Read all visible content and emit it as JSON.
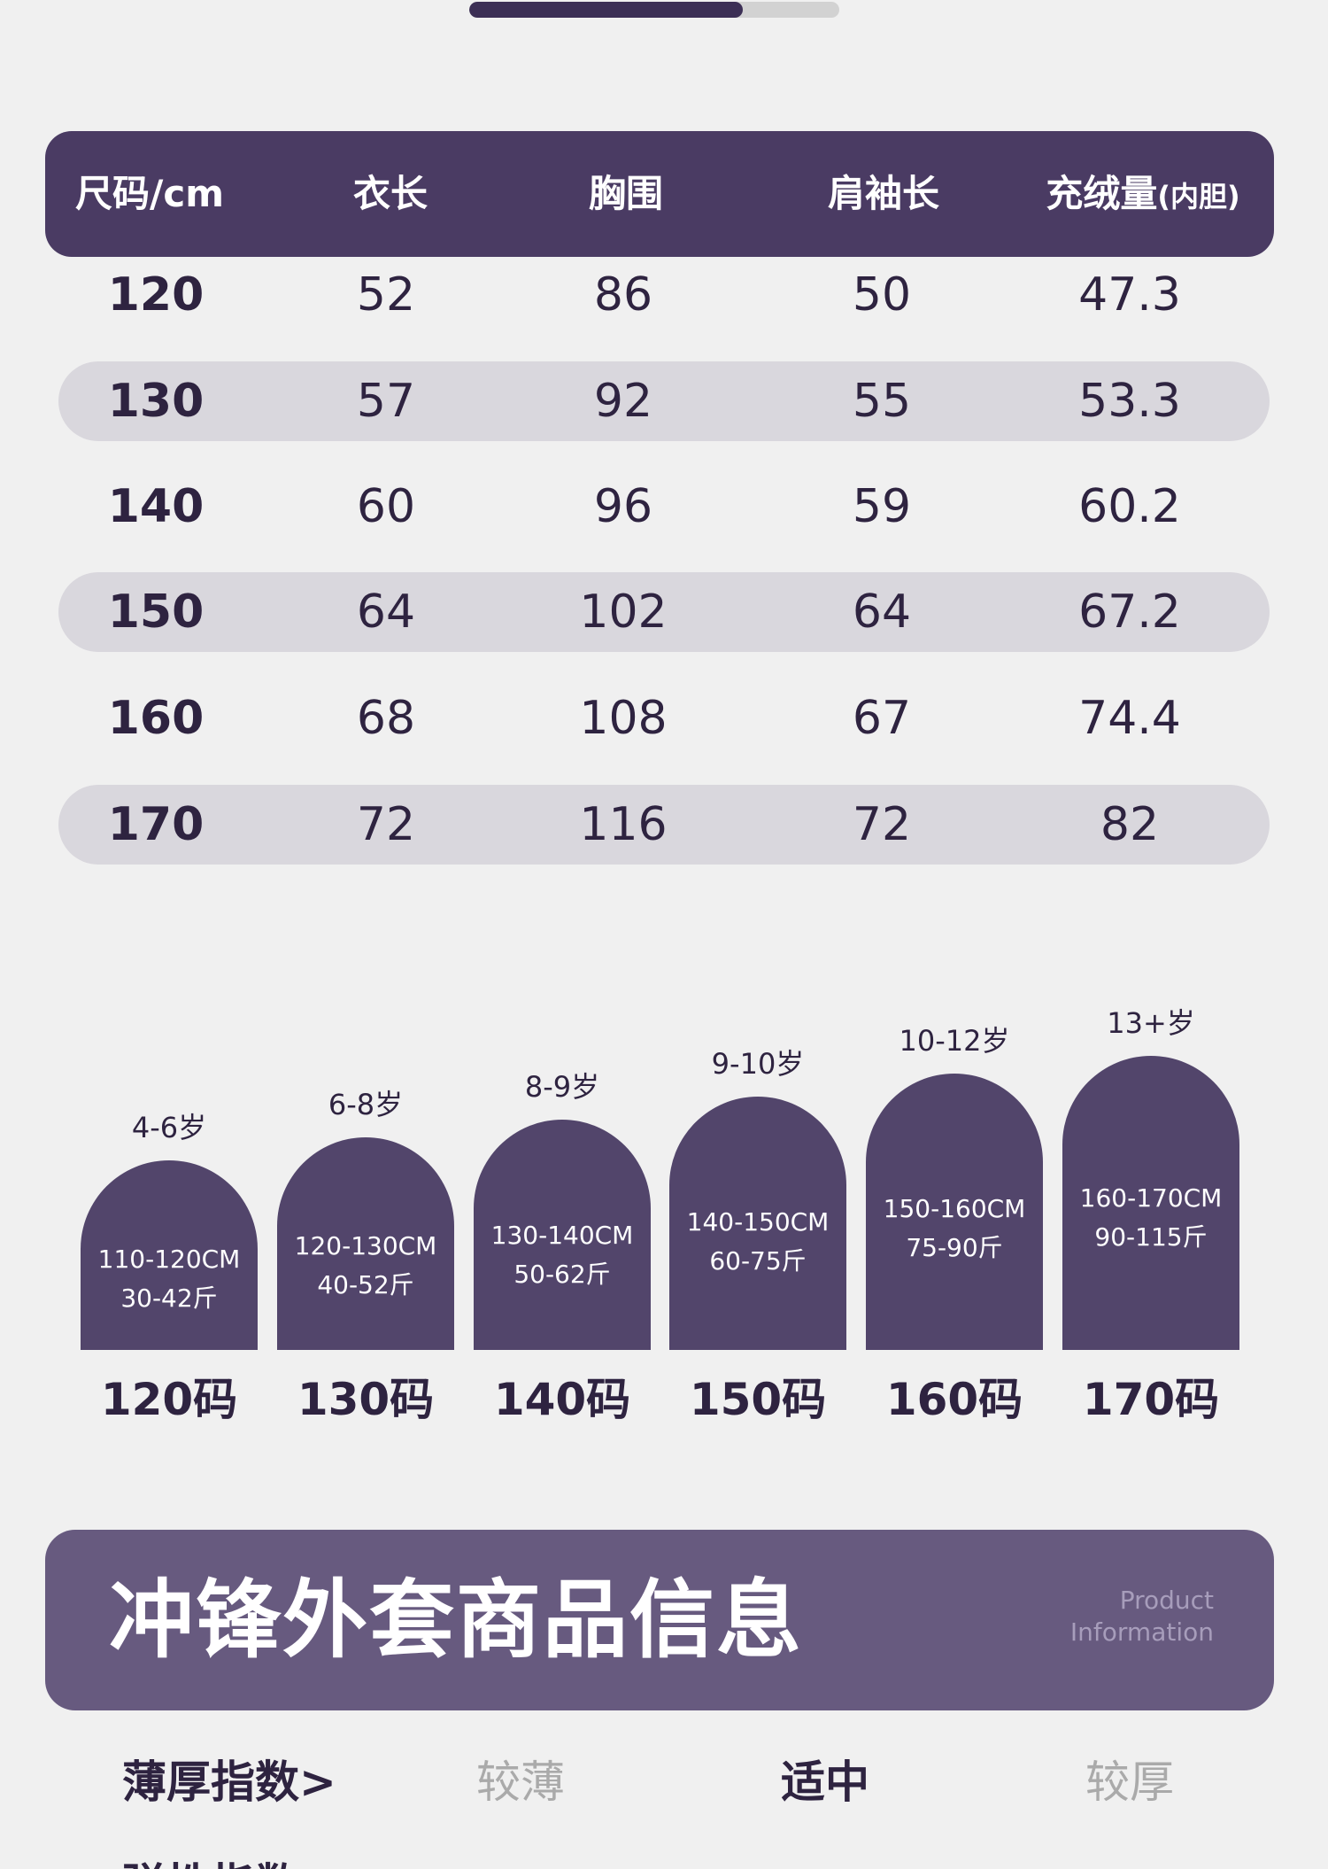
{
  "progress": {
    "fraction": 0.74
  },
  "size_table": {
    "headers": [
      "尺码/cm",
      "衣长",
      "胸围",
      "肩袖长",
      "充绒量",
      "(内胆)"
    ],
    "rows": [
      [
        "120",
        "52",
        "86",
        "50",
        "47.3"
      ],
      [
        "130",
        "57",
        "92",
        "55",
        "53.3"
      ],
      [
        "140",
        "60",
        "96",
        "59",
        "60.2"
      ],
      [
        "150",
        "64",
        "102",
        "64",
        "67.2"
      ],
      [
        "160",
        "68",
        "108",
        "67",
        "74.4"
      ],
      [
        "170",
        "72",
        "116",
        "72",
        "82"
      ]
    ]
  },
  "size_guide": [
    {
      "age": "4-6岁",
      "height": "110-120CM",
      "weight": "30-42斤",
      "size": "120码"
    },
    {
      "age": "6-8岁",
      "height": "120-130CM",
      "weight": "40-52斤",
      "size": "130码"
    },
    {
      "age": "8-9岁",
      "height": "130-140CM",
      "weight": "50-62斤",
      "size": "140码"
    },
    {
      "age": "9-10岁",
      "height": "140-150CM",
      "weight": "60-75斤",
      "size": "150码"
    },
    {
      "age": "10-12岁",
      "height": "150-160CM",
      "weight": "75-90斤",
      "size": "160码"
    },
    {
      "age": "13+岁",
      "height": "160-170CM",
      "weight": "90-115斤",
      "size": "170码"
    }
  ],
  "product_info": {
    "title": "冲锋外套商品信息",
    "subtitle_line1": "Product",
    "subtitle_line2": "Information"
  },
  "thickness_index": {
    "label": "薄厚指数>",
    "options": [
      "较薄",
      "适中",
      "较厚"
    ],
    "selected": "适中"
  },
  "next_index": {
    "label": "弹性指数"
  }
}
